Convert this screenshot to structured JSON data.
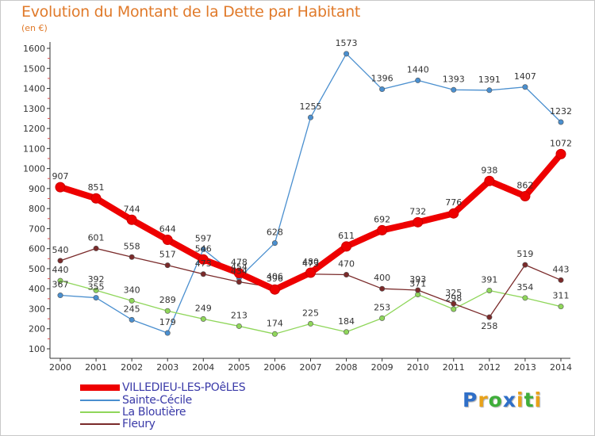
{
  "chart_data": {
    "type": "line",
    "title": "Evolution du Montant de la Dette par Habitant",
    "subtitle": "(en €)",
    "x": [
      "2000",
      "2001",
      "2002",
      "2003",
      "2004",
      "2005",
      "2006",
      "2007",
      "2008",
      "2009",
      "2010",
      "2011",
      "2012",
      "2013",
      "2014"
    ],
    "ylim": [
      100,
      1600
    ],
    "yticks": [
      "100",
      "200",
      "300",
      "400",
      "500",
      "600",
      "700",
      "800",
      "900",
      "1000",
      "1100",
      "1200",
      "1300",
      "1400",
      "1500",
      "1600"
    ],
    "grid": false,
    "legend_position": "bottom-left",
    "series": [
      {
        "name": "VILLEDIEU-LES-POêLES",
        "color": "#ee0000",
        "values": [
          907,
          851,
          744,
          644,
          546,
          478,
          396,
          480,
          611,
          692,
          732,
          776,
          938,
          862,
          1072
        ],
        "labels": [
          "907",
          "851",
          "744",
          "644",
          "546",
          "478",
          "396",
          "480",
          "611",
          "692",
          "732",
          "776",
          "938",
          "862",
          "1072"
        ]
      },
      {
        "name": "Sainte-Cécile",
        "color": "#4a8fcf",
        "values": [
          367,
          355,
          245,
          179,
          597,
          454,
          628,
          1255,
          1573,
          1396,
          1440,
          1393,
          1391,
          1407,
          1232
        ],
        "labels": [
          "367",
          "355",
          "245",
          "179",
          "597",
          "454",
          "628",
          "1255",
          "1573",
          "1396",
          "1440",
          "1393",
          "1391",
          "1407",
          "1232"
        ]
      },
      {
        "name": "La Bloutière",
        "color": "#8fd65a",
        "values": [
          440,
          392,
          340,
          289,
          249,
          213,
          174,
          225,
          184,
          253,
          371,
          298,
          391,
          354,
          311
        ],
        "labels": [
          "440",
          "392",
          "340",
          "289",
          "249",
          "213",
          "174",
          "225",
          "184",
          "253",
          "371",
          "298",
          "391",
          "354",
          "311"
        ]
      },
      {
        "name": "Fleury",
        "color": "#7a2a2a",
        "values": [
          540,
          601,
          558,
          517,
          473,
          434,
          406,
          473,
          470,
          400,
          393,
          325,
          258,
          519,
          443
        ],
        "labels": [
          "540",
          "601",
          "558",
          "517",
          "473",
          "434",
          "406",
          "473",
          "470",
          "400",
          "393",
          "325",
          "258",
          "519",
          "443"
        ]
      }
    ]
  },
  "logo": {
    "letters": [
      "P",
      "r",
      "o",
      "x",
      "i",
      "t",
      "i"
    ],
    "colors": [
      "#2f6fc8",
      "#e8a21a",
      "#3fae3a",
      "#2f6fc8",
      "#e8a21a",
      "#3fae3a",
      "#e8a21a"
    ]
  }
}
